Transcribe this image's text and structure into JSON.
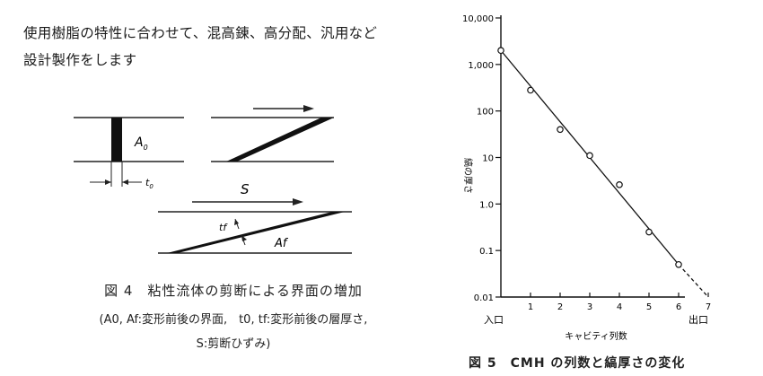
{
  "intro": {
    "line1": "使用樹脂の特性に合わせて、混高錬、高分配、汎用など",
    "line2": "設計製作をします"
  },
  "figure4": {
    "label_A0": "A",
    "label_A0_sub": "0",
    "label_t0": "t",
    "label_t0_sub": "0",
    "label_S": "S",
    "label_tf": "tf",
    "label_Af": "Af",
    "caption_title": "図 4　粘性流体の剪断による界面の増加",
    "caption_line2": "(A0, Af:変形前後の界面,　t0, tf:変形前後の層厚さ,",
    "caption_line3": "S:剪断ひずみ)"
  },
  "figure5": {
    "caption": "図 5　CMH の列数と縞厚さの変化",
    "entry_label": "入口",
    "exit_label": "出口"
  },
  "chart_data": {
    "type": "scatter",
    "xlabel": "キャビティ列数",
    "ylabel": "縞の厚さ",
    "x_ticks": [
      "1",
      "2",
      "3",
      "4",
      "5",
      "6",
      "7"
    ],
    "y_ticks": [
      "0.01",
      "0.1",
      "1.0",
      "10",
      "100",
      "1,000",
      "10,000"
    ],
    "xlim": [
      0,
      7
    ],
    "ylim": [
      0.01,
      10000
    ],
    "y_scale": "log",
    "series": [
      {
        "points": [
          {
            "x": 0,
            "y": 2000
          },
          {
            "x": 1,
            "y": 280
          },
          {
            "x": 2,
            "y": 40
          },
          {
            "x": 3,
            "y": 11
          },
          {
            "x": 4,
            "y": 2.6
          },
          {
            "x": 5,
            "y": 0.25
          },
          {
            "x": 6,
            "y": 0.05
          }
        ]
      }
    ],
    "fit_line": {
      "x": [
        0,
        6
      ],
      "y": [
        2000,
        0.05
      ]
    },
    "extrapolation": {
      "x": [
        6,
        7
      ],
      "y": [
        0.05,
        0.01
      ],
      "style": "dashed"
    },
    "grid": false
  }
}
